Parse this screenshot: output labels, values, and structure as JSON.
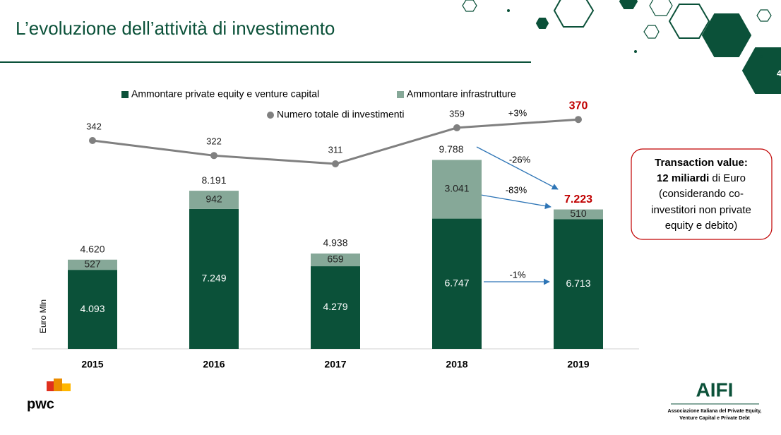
{
  "header": {
    "title": "L’evoluzione dell’attività di investimento",
    "page_number": "4"
  },
  "chart_data": {
    "type": "bar",
    "stacked": true,
    "y_label": "Euro Mln",
    "categories": [
      "2015",
      "2016",
      "2017",
      "2018",
      "2019"
    ],
    "ylim": [
      0,
      12000
    ],
    "y2lim": [
      65,
      373
    ],
    "series": [
      {
        "name": "Ammontare private equity e venture capital",
        "color": "#0b5139",
        "values": [
          4093,
          7249,
          4279,
          6747,
          6713
        ],
        "value_labels": [
          "4.093",
          "7.249",
          "4.279",
          "6.747",
          "6.713"
        ]
      },
      {
        "name": "Ammontare infrastrutture",
        "color": "#86a898",
        "values": [
          527,
          942,
          659,
          3041,
          510
        ],
        "value_labels": [
          "527",
          "942",
          "659",
          "3.041",
          "510"
        ]
      },
      {
        "name": "Numero totale di investimenti",
        "type": "line",
        "axis": "y2",
        "color": "#808080",
        "values": [
          342,
          322,
          311,
          359,
          370
        ]
      }
    ],
    "totals": {
      "values": [
        4620,
        8191,
        4938,
        9788,
        7223
      ],
      "value_labels": [
        "4.620",
        "8.191",
        "4.938",
        "9.788",
        "7.223"
      ]
    },
    "annotations": [
      "+3%",
      "-26%",
      "-83%",
      "-1%"
    ]
  },
  "callout": {
    "line1": "Transaction value:",
    "bold": "12 miliardi",
    "rest1": " di Euro",
    "line3": "(considerando co-",
    "line4": "investitori non private",
    "line5": "equity e debito)"
  },
  "footer": {
    "pwc": "pwc",
    "aifi": "AIFI",
    "aifi_line1": "Associazione Italiana del Private Equity,",
    "aifi_line2": "Venture Capital e Private Debt"
  }
}
